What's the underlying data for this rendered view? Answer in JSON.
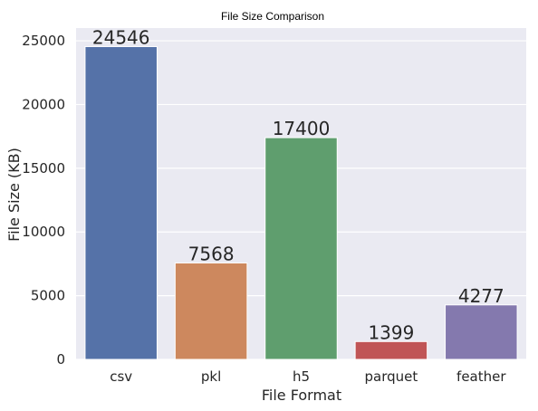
{
  "chart_data": {
    "type": "bar",
    "title": "File Size Comparison",
    "xlabel": "File Format",
    "ylabel": "File Size (KB)",
    "categories": [
      "csv",
      "pkl",
      "h5",
      "parquet",
      "feather"
    ],
    "values": [
      24546,
      7568,
      17400,
      1399,
      4277
    ],
    "data_labels": [
      "24546",
      "7568",
      "17400",
      "1399",
      "4277"
    ],
    "colors": [
      "#5572a8",
      "#cd885e",
      "#5f9e6e",
      "#c05556",
      "#8479ae"
    ],
    "ylim": [
      0,
      26000
    ],
    "yticks": [
      0,
      5000,
      10000,
      15000,
      20000,
      25000
    ],
    "ytick_labels": [
      "0",
      "5000",
      "10000",
      "15000",
      "20000",
      "25000"
    ],
    "grid": true,
    "background": "#eaeaf2",
    "grid_color": "#ffffff"
  }
}
